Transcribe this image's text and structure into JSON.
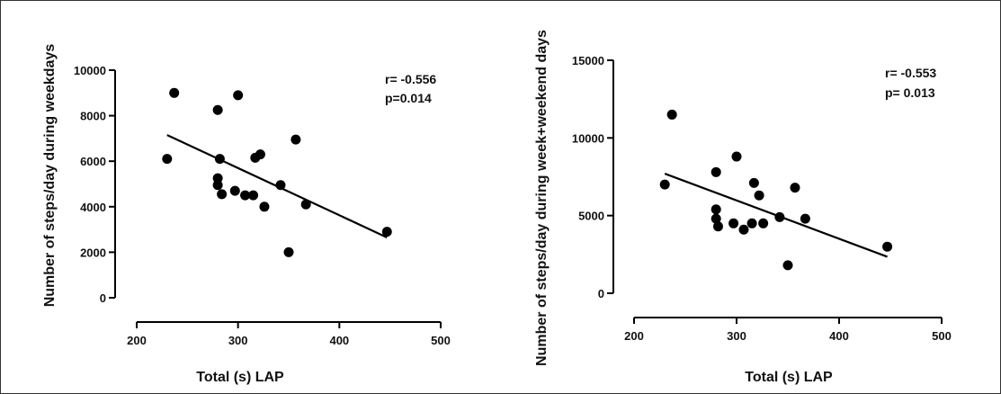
{
  "chart_data": [
    {
      "type": "scatter",
      "xlabel": "Total (s) LAP",
      "ylabel": "Number of steps/day during weekdays",
      "xlim": [
        200,
        500
      ],
      "ylim": [
        0,
        10000
      ],
      "xticks": [
        200,
        300,
        400,
        500
      ],
      "yticks": [
        0,
        2000,
        4000,
        6000,
        8000,
        10000
      ],
      "grid": false,
      "annotation": [
        "r= -0.556",
        "p=0.014"
      ],
      "points": [
        {
          "x": 230,
          "y": 6100
        },
        {
          "x": 237,
          "y": 9000
        },
        {
          "x": 280,
          "y": 8250
        },
        {
          "x": 280,
          "y": 5250
        },
        {
          "x": 280,
          "y": 4950
        },
        {
          "x": 282,
          "y": 6100
        },
        {
          "x": 284,
          "y": 4550
        },
        {
          "x": 297,
          "y": 4700
        },
        {
          "x": 300,
          "y": 8900
        },
        {
          "x": 307,
          "y": 4500
        },
        {
          "x": 315,
          "y": 4500
        },
        {
          "x": 317,
          "y": 6150
        },
        {
          "x": 322,
          "y": 6300
        },
        {
          "x": 326,
          "y": 4000
        },
        {
          "x": 342,
          "y": 4950
        },
        {
          "x": 350,
          "y": 2000
        },
        {
          "x": 357,
          "y": 6950
        },
        {
          "x": 367,
          "y": 4100
        },
        {
          "x": 447,
          "y": 2900
        }
      ],
      "fit_line": {
        "x": [
          230,
          447
        ],
        "y": [
          7150,
          2650
        ]
      }
    },
    {
      "type": "scatter",
      "xlabel": "Total (s) LAP",
      "ylabel": "Number of steps/day during week+weekend days",
      "xlim": [
        200,
        500
      ],
      "ylim": [
        0,
        15000
      ],
      "xticks": [
        200,
        300,
        400,
        500
      ],
      "yticks": [
        0,
        5000,
        10000,
        15000
      ],
      "grid": false,
      "annotation": [
        "r= -0.553",
        "p= 0.013"
      ],
      "points": [
        {
          "x": 230,
          "y": 7000
        },
        {
          "x": 237,
          "y": 11500
        },
        {
          "x": 280,
          "y": 7800
        },
        {
          "x": 280,
          "y": 5400
        },
        {
          "x": 280,
          "y": 4800
        },
        {
          "x": 282,
          "y": 4300
        },
        {
          "x": 297,
          "y": 4500
        },
        {
          "x": 300,
          "y": 8800
        },
        {
          "x": 307,
          "y": 4100
        },
        {
          "x": 315,
          "y": 4500
        },
        {
          "x": 317,
          "y": 7100
        },
        {
          "x": 322,
          "y": 6300
        },
        {
          "x": 326,
          "y": 4500
        },
        {
          "x": 342,
          "y": 4900
        },
        {
          "x": 350,
          "y": 1800
        },
        {
          "x": 357,
          "y": 6800
        },
        {
          "x": 367,
          "y": 4800
        },
        {
          "x": 447,
          "y": 3000
        }
      ],
      "fit_line": {
        "x": [
          230,
          447
        ],
        "y": [
          7700,
          2350
        ]
      }
    }
  ]
}
